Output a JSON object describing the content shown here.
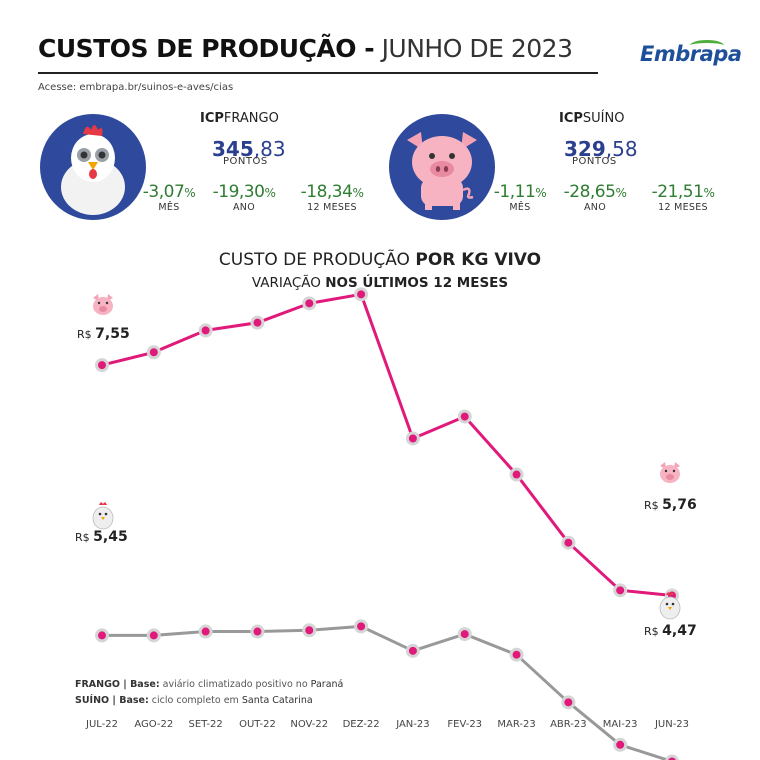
{
  "header": {
    "title_bold": "CUSTOS DE PRODUÇÃO -",
    "title_light": "JUNHO DE 2023",
    "logo": "Embrapa",
    "url": "Acesse: embrapa.br/suinos-e-aves/cias"
  },
  "icp": {
    "frango": {
      "name_bold": "ICP",
      "name_rest": "FRANGO",
      "value_int": "345",
      "value_dec": ",83",
      "unit": "PONTOS",
      "variations": [
        {
          "value": "-3,07",
          "pct": "%",
          "label": "MÊS"
        },
        {
          "value": "-19,30",
          "pct": "%",
          "label": "ANO"
        },
        {
          "value": "-18,34",
          "pct": "%",
          "label": "12 MESES"
        }
      ]
    },
    "suino": {
      "name_bold": "ICP",
      "name_rest": "SUÍNO",
      "value_int": "329",
      "value_dec": ",58",
      "unit": "PONTOS",
      "variations": [
        {
          "value": "-1,11",
          "pct": "%",
          "label": "MÊS"
        },
        {
          "value": "-28,65",
          "pct": "%",
          "label": "ANO"
        },
        {
          "value": "-21,51",
          "pct": "%",
          "label": "12 MESES"
        }
      ]
    }
  },
  "chart_title": {
    "line1_normal": "CUSTO DE PRODUÇÃO",
    "line1_bold": "POR KG VIVO",
    "line2_normal": "VARIAÇÃO",
    "line2_bold": "NOS ÚLTIMOS 12 MESES"
  },
  "end_labels": {
    "suino_start": {
      "currency": "R$",
      "value": "7,55"
    },
    "suino_end": {
      "currency": "R$",
      "value": "5,76"
    },
    "frango_start": {
      "currency": "R$",
      "value": "5,45"
    },
    "frango_end": {
      "currency": "R$",
      "value": "4,47"
    }
  },
  "notes": {
    "frango_label": "FRANGO | Base:",
    "frango_text": "aviário climatizado positivo no",
    "frango_place": "Paraná",
    "suino_label": "SUÍNO | Base:",
    "suino_text": "ciclo completo em",
    "suino_place": "Santa Catarina"
  },
  "colors": {
    "suino_line": "#e0197a",
    "frango_line": "#999999",
    "icp_value": "#2b3f8f",
    "variation": "#2e7d32"
  },
  "chart_data": {
    "type": "line",
    "categories": [
      "JUL-22",
      "AGO-22",
      "SET-22",
      "OUT-22",
      "NOV-22",
      "DEZ-22",
      "JAN-23",
      "FEV-23",
      "MAR-23",
      "ABR-23",
      "MAI-23",
      "JUN-23"
    ],
    "series": [
      {
        "name": "SUÍNO",
        "values": [
          7.55,
          7.65,
          7.82,
          7.88,
          8.03,
          8.1,
          6.98,
          7.15,
          6.7,
          6.17,
          5.8,
          5.76
        ]
      },
      {
        "name": "FRANGO",
        "values": [
          5.45,
          5.45,
          5.48,
          5.48,
          5.49,
          5.52,
          5.33,
          5.46,
          5.3,
          4.93,
          4.6,
          4.47
        ]
      }
    ],
    "ylim": [
      4.0,
      8.6
    ],
    "grid": false,
    "legend": "none"
  }
}
